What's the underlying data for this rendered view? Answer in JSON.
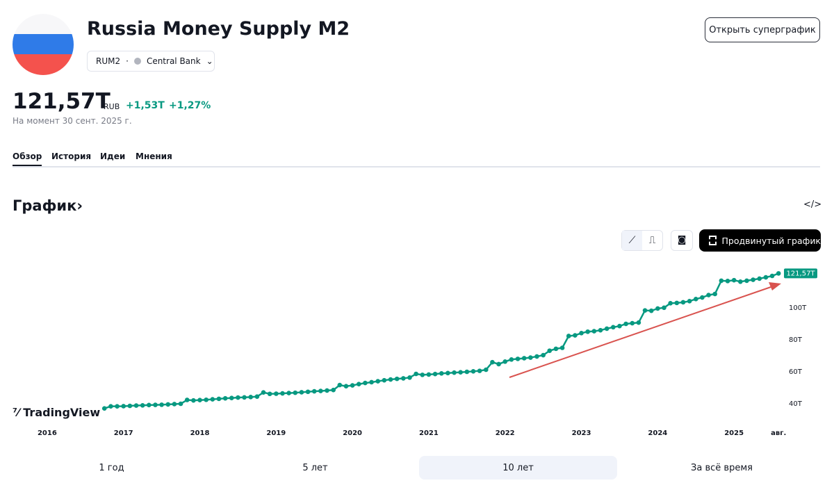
{
  "header": {
    "title": "Russia Money Supply M2",
    "ticker": "RUM2",
    "source": "Central Bank",
    "price": "121,57T",
    "currency": "RUB",
    "change": "+1,53T",
    "change_pct": "+1,27%",
    "as_of": "На момент 30 сент. 2025 г.",
    "button": "Открыть суперграфик"
  },
  "tabs": [
    "Обзор",
    "История",
    "Идеи",
    "Мнения"
  ],
  "section_title": "График›",
  "toolbar": {
    "advanced": "Продвинутый график"
  },
  "logo": "TradingView",
  "ranges": [
    "1 год",
    "5 лет",
    "10 лет",
    "За всё время"
  ],
  "chart_data": {
    "type": "line",
    "color": "#089981",
    "last_value_label": "121,57T",
    "x": [
      "2015-12",
      "2016-01",
      "2016-02",
      "2016-03",
      "2016-04",
      "2016-05",
      "2016-06",
      "2016-07",
      "2016-08",
      "2016-09",
      "2016-10",
      "2016-11",
      "2016-12",
      "2017-01",
      "2017-02",
      "2017-03",
      "2017-04",
      "2017-05",
      "2017-06",
      "2017-07",
      "2017-08",
      "2017-09",
      "2017-10",
      "2017-11",
      "2017-12",
      "2018-01",
      "2018-02",
      "2018-03",
      "2018-04",
      "2018-05",
      "2018-06",
      "2018-07",
      "2018-08",
      "2018-09",
      "2018-10",
      "2018-11",
      "2018-12",
      "2019-01",
      "2019-02",
      "2019-03",
      "2019-04",
      "2019-05",
      "2019-06",
      "2019-07",
      "2019-08",
      "2019-09",
      "2019-10",
      "2019-11",
      "2019-12",
      "2020-01",
      "2020-02",
      "2020-03",
      "2020-04",
      "2020-05",
      "2020-06",
      "2020-07",
      "2020-08",
      "2020-09",
      "2020-10",
      "2020-11",
      "2020-12",
      "2021-01",
      "2021-02",
      "2021-03",
      "2021-04",
      "2021-05",
      "2021-06",
      "2021-07",
      "2021-08",
      "2021-09",
      "2021-10",
      "2021-11",
      "2021-12",
      "2022-01",
      "2022-02",
      "2022-03",
      "2022-04",
      "2022-05",
      "2022-06",
      "2022-07",
      "2022-08",
      "2022-09",
      "2022-10",
      "2022-11",
      "2022-12",
      "2023-01",
      "2023-02",
      "2023-03",
      "2023-04",
      "2023-05",
      "2023-06",
      "2023-07",
      "2023-08",
      "2023-09",
      "2023-10",
      "2023-11",
      "2023-12",
      "2024-01",
      "2024-02",
      "2024-03",
      "2024-04",
      "2024-05",
      "2024-06",
      "2024-07",
      "2024-08",
      "2024-09",
      "2024-10",
      "2024-11",
      "2024-12",
      "2025-01",
      "2025-02",
      "2025-03",
      "2025-04",
      "2025-05",
      "2025-06",
      "2025-07",
      "2025-08"
    ],
    "values": [
      35.8,
      35.6,
      35.8,
      36.0,
      36.1,
      36.3,
      36.4,
      36.5,
      36.7,
      36.9,
      37.1,
      38.4,
      38.4,
      38.5,
      38.7,
      38.9,
      39.0,
      39.2,
      39.3,
      39.4,
      39.6,
      39.8,
      40.0,
      42.4,
      42.1,
      42.3,
      42.5,
      42.8,
      43.1,
      43.4,
      43.6,
      43.9,
      44.0,
      44.2,
      44.5,
      47.1,
      46.2,
      46.3,
      46.5,
      46.7,
      46.9,
      47.2,
      47.5,
      47.8,
      48.0,
      48.3,
      48.6,
      51.7,
      51.0,
      51.5,
      52.3,
      53.0,
      53.5,
      54.1,
      54.7,
      55.2,
      55.6,
      55.9,
      56.4,
      58.7,
      58.1,
      58.3,
      58.6,
      59.0,
      59.2,
      59.5,
      59.7,
      60.0,
      60.3,
      60.6,
      61.3,
      66.0,
      64.8,
      66.4,
      67.7,
      68.1,
      68.5,
      68.9,
      69.6,
      70.4,
      73.2,
      74.4,
      75.0,
      82.4,
      82.8,
      84.2,
      85.1,
      85.4,
      86.0,
      87.0,
      87.9,
      88.6,
      90.0,
      90.4,
      90.8,
      98.4,
      98.2,
      99.6,
      100.1,
      102.9,
      103.1,
      103.5,
      104.2,
      105.5,
      106.5,
      108.0,
      108.7,
      117.0,
      116.8,
      117.3,
      116.4,
      117.0,
      117.6,
      118.3,
      119.1,
      120.0,
      121.57
    ],
    "xlim": [
      "2015-07",
      "2025-10"
    ],
    "xticks": [
      {
        "value": "2016-01",
        "label": "2016"
      },
      {
        "value": "2017-01",
        "label": "2017"
      },
      {
        "value": "2018-01",
        "label": "2018"
      },
      {
        "value": "2019-01",
        "label": "2019"
      },
      {
        "value": "2020-01",
        "label": "2020"
      },
      {
        "value": "2021-01",
        "label": "2021"
      },
      {
        "value": "2022-01",
        "label": "2022"
      },
      {
        "value": "2023-01",
        "label": "2023"
      },
      {
        "value": "2024-01",
        "label": "2024"
      },
      {
        "value": "2025-01",
        "label": "2025"
      },
      {
        "value": "2025-08",
        "label": "авг."
      }
    ],
    "ylim": [
      32,
      130
    ],
    "yticks": [
      {
        "value": 40,
        "label": "40T"
      },
      {
        "value": 60,
        "label": "60T"
      },
      {
        "value": 80,
        "label": "80T"
      },
      {
        "value": 100,
        "label": "100T"
      }
    ]
  }
}
